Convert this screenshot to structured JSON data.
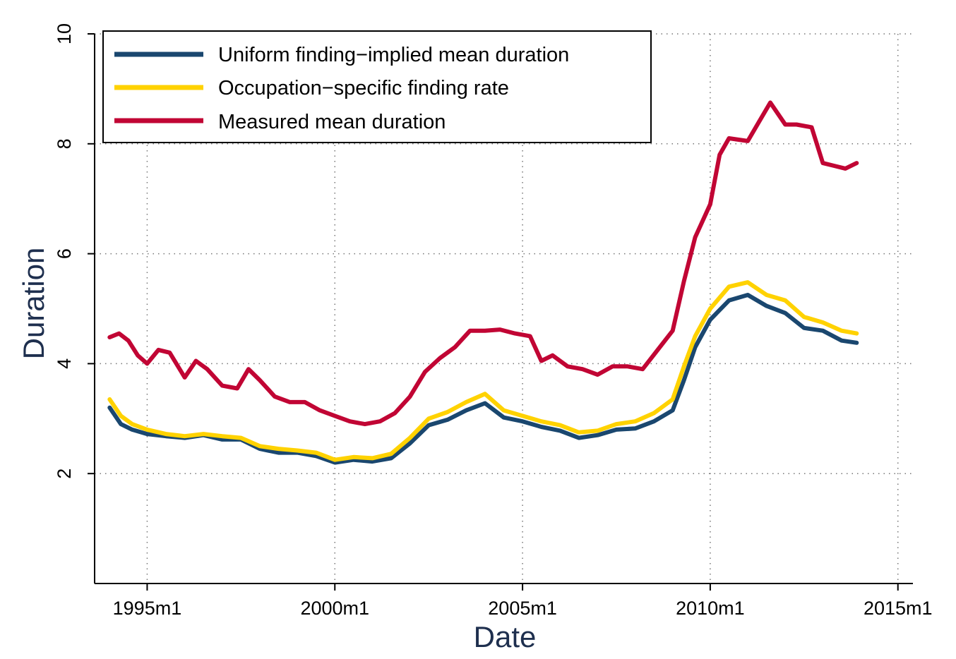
{
  "chart_data": {
    "type": "line",
    "title": "",
    "xlabel": "Date",
    "ylabel": "Duration",
    "x_ticks": [
      "1995m1",
      "2000m1",
      "2005m1",
      "2010m1",
      "2015m1"
    ],
    "y_ticks": [
      "2",
      "4",
      "6",
      "8",
      "10"
    ],
    "ylim": [
      0,
      10
    ],
    "xlim_year": [
      1993.6,
      2015.4
    ],
    "grid": "dotted",
    "legend_position": "top-left",
    "series": [
      {
        "name": "Uniform finding−implied mean duration",
        "color": "#1a476f",
        "points": [
          [
            1994.0,
            3.2
          ],
          [
            1994.3,
            2.9
          ],
          [
            1994.6,
            2.8
          ],
          [
            1995.0,
            2.72
          ],
          [
            1995.5,
            2.68
          ],
          [
            1996.0,
            2.65
          ],
          [
            1996.5,
            2.7
          ],
          [
            1997.0,
            2.62
          ],
          [
            1997.5,
            2.62
          ],
          [
            1998.0,
            2.45
          ],
          [
            1998.5,
            2.38
          ],
          [
            1999.0,
            2.38
          ],
          [
            1999.5,
            2.32
          ],
          [
            2000.0,
            2.2
          ],
          [
            2000.5,
            2.25
          ],
          [
            2001.0,
            2.22
          ],
          [
            2001.5,
            2.28
          ],
          [
            2002.0,
            2.55
          ],
          [
            2002.5,
            2.88
          ],
          [
            2003.0,
            2.98
          ],
          [
            2003.5,
            3.15
          ],
          [
            2004.0,
            3.28
          ],
          [
            2004.5,
            3.02
          ],
          [
            2005.0,
            2.95
          ],
          [
            2005.5,
            2.85
          ],
          [
            2006.0,
            2.78
          ],
          [
            2006.5,
            2.65
          ],
          [
            2007.0,
            2.7
          ],
          [
            2007.5,
            2.8
          ],
          [
            2008.0,
            2.82
          ],
          [
            2008.5,
            2.95
          ],
          [
            2009.0,
            3.15
          ],
          [
            2009.3,
            3.7
          ],
          [
            2009.6,
            4.3
          ],
          [
            2010.0,
            4.8
          ],
          [
            2010.5,
            5.15
          ],
          [
            2011.0,
            5.25
          ],
          [
            2011.5,
            5.05
          ],
          [
            2012.0,
            4.92
          ],
          [
            2012.5,
            4.65
          ],
          [
            2013.0,
            4.6
          ],
          [
            2013.5,
            4.42
          ],
          [
            2013.9,
            4.38
          ]
        ]
      },
      {
        "name": "Occupation−specific finding rate",
        "color": "#ffd200",
        "points": [
          [
            1994.0,
            3.35
          ],
          [
            1994.3,
            3.05
          ],
          [
            1994.6,
            2.9
          ],
          [
            1995.0,
            2.8
          ],
          [
            1995.5,
            2.72
          ],
          [
            1996.0,
            2.68
          ],
          [
            1996.5,
            2.72
          ],
          [
            1997.0,
            2.68
          ],
          [
            1997.5,
            2.65
          ],
          [
            1998.0,
            2.5
          ],
          [
            1998.5,
            2.45
          ],
          [
            1999.0,
            2.42
          ],
          [
            1999.5,
            2.38
          ],
          [
            2000.0,
            2.25
          ],
          [
            2000.5,
            2.3
          ],
          [
            2001.0,
            2.28
          ],
          [
            2001.5,
            2.36
          ],
          [
            2002.0,
            2.65
          ],
          [
            2002.5,
            3.0
          ],
          [
            2003.0,
            3.12
          ],
          [
            2003.5,
            3.3
          ],
          [
            2004.0,
            3.45
          ],
          [
            2004.5,
            3.15
          ],
          [
            2005.0,
            3.05
          ],
          [
            2005.5,
            2.95
          ],
          [
            2006.0,
            2.88
          ],
          [
            2006.5,
            2.75
          ],
          [
            2007.0,
            2.78
          ],
          [
            2007.5,
            2.9
          ],
          [
            2008.0,
            2.95
          ],
          [
            2008.5,
            3.1
          ],
          [
            2009.0,
            3.35
          ],
          [
            2009.3,
            3.95
          ],
          [
            2009.6,
            4.5
          ],
          [
            2010.0,
            5.0
          ],
          [
            2010.5,
            5.4
          ],
          [
            2011.0,
            5.48
          ],
          [
            2011.5,
            5.25
          ],
          [
            2012.0,
            5.15
          ],
          [
            2012.5,
            4.85
          ],
          [
            2013.0,
            4.75
          ],
          [
            2013.5,
            4.6
          ],
          [
            2013.9,
            4.55
          ]
        ]
      },
      {
        "name": "Measured mean duration",
        "color": "#c10534",
        "points": [
          [
            1994.0,
            4.48
          ],
          [
            1994.25,
            4.55
          ],
          [
            1994.5,
            4.42
          ],
          [
            1994.75,
            4.15
          ],
          [
            1995.0,
            4.0
          ],
          [
            1995.3,
            4.25
          ],
          [
            1995.6,
            4.2
          ],
          [
            1996.0,
            3.75
          ],
          [
            1996.3,
            4.05
          ],
          [
            1996.6,
            3.9
          ],
          [
            1997.0,
            3.6
          ],
          [
            1997.4,
            3.55
          ],
          [
            1997.7,
            3.9
          ],
          [
            1998.0,
            3.7
          ],
          [
            1998.4,
            3.4
          ],
          [
            1998.8,
            3.3
          ],
          [
            1999.2,
            3.3
          ],
          [
            1999.6,
            3.15
          ],
          [
            2000.0,
            3.05
          ],
          [
            2000.4,
            2.95
          ],
          [
            2000.8,
            2.9
          ],
          [
            2001.2,
            2.95
          ],
          [
            2001.6,
            3.1
          ],
          [
            2002.0,
            3.4
          ],
          [
            2002.4,
            3.85
          ],
          [
            2002.8,
            4.1
          ],
          [
            2003.2,
            4.3
          ],
          [
            2003.6,
            4.6
          ],
          [
            2004.0,
            4.6
          ],
          [
            2004.4,
            4.62
          ],
          [
            2004.8,
            4.55
          ],
          [
            2005.2,
            4.5
          ],
          [
            2005.5,
            4.05
          ],
          [
            2005.8,
            4.15
          ],
          [
            2006.2,
            3.95
          ],
          [
            2006.6,
            3.9
          ],
          [
            2007.0,
            3.8
          ],
          [
            2007.4,
            3.95
          ],
          [
            2007.8,
            3.95
          ],
          [
            2008.2,
            3.9
          ],
          [
            2008.6,
            4.25
          ],
          [
            2009.0,
            4.6
          ],
          [
            2009.3,
            5.5
          ],
          [
            2009.6,
            6.3
          ],
          [
            2010.0,
            6.9
          ],
          [
            2010.25,
            7.8
          ],
          [
            2010.5,
            8.1
          ],
          [
            2011.0,
            8.05
          ],
          [
            2011.3,
            8.4
          ],
          [
            2011.6,
            8.75
          ],
          [
            2012.0,
            8.35
          ],
          [
            2012.3,
            8.35
          ],
          [
            2012.7,
            8.3
          ],
          [
            2013.0,
            7.65
          ],
          [
            2013.3,
            7.6
          ],
          [
            2013.6,
            7.55
          ],
          [
            2013.9,
            7.65
          ]
        ]
      }
    ]
  }
}
